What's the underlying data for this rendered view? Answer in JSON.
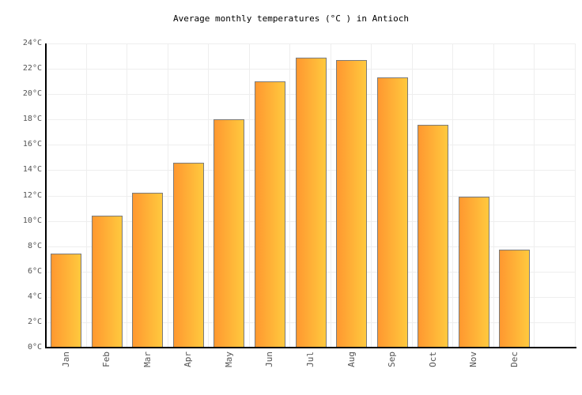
{
  "chart_data": {
    "type": "bar",
    "title": "Average monthly temperatures (°C ) in Antioch",
    "unit": "°C",
    "categories": [
      "Jan",
      "Feb",
      "Mar",
      "Apr",
      "May",
      "Jun",
      "Jul",
      "Aug",
      "Sep",
      "Oct",
      "Nov",
      "Dec"
    ],
    "values": [
      7.4,
      10.4,
      12.2,
      14.6,
      18.0,
      21.0,
      22.9,
      22.7,
      21.3,
      17.6,
      11.9,
      7.7
    ],
    "xlabel": "",
    "ylabel": "",
    "ylim": [
      0,
      24
    ],
    "ytick_step": 2,
    "ytick_labels": [
      "0°C",
      "2°C",
      "4°C",
      "6°C",
      "8°C",
      "10°C",
      "12°C",
      "14°C",
      "16°C",
      "18°C",
      "20°C",
      "22°C",
      "24°C"
    ],
    "grid": true,
    "legend": "none",
    "colors": {
      "background": "#ffffff",
      "bar_gradient_left": "#ff9830",
      "bar_gradient_right": "#ffc93e",
      "bar_border": "#7b7b7b",
      "gridline": "#eeeeee",
      "axis": "#000000",
      "tick_label": "#545454",
      "title": "#000000"
    }
  }
}
